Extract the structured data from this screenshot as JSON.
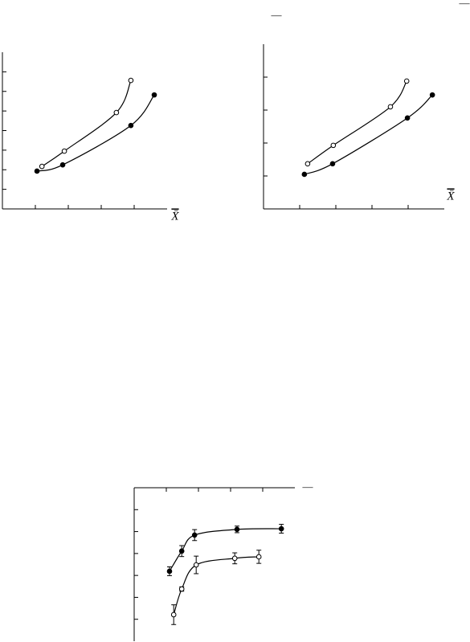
{
  "fragments": [
    "—",
    "—",
    "—"
  ],
  "chart_data": [
    {
      "type": "scatter",
      "x_label": "X̄",
      "xlim": [
        0,
        5
      ],
      "ylim": [
        0,
        8
      ],
      "xticks": [
        1,
        2,
        3,
        4
      ],
      "yticks": [
        1,
        2,
        3,
        4,
        5,
        6,
        7
      ],
      "series": [
        {
          "marker": "open",
          "color": "#000000",
          "x": [
            1.2,
            1.88,
            3.46,
            3.9
          ],
          "values": [
            2.17,
            2.95,
            4.92,
            6.56
          ]
        },
        {
          "marker": "filled",
          "color": "#000000",
          "x": [
            1.05,
            1.83,
            3.9,
            4.61
          ],
          "values": [
            1.93,
            2.25,
            4.26,
            5.82
          ]
        }
      ]
    },
    {
      "type": "scatter",
      "x_label": "X̄",
      "xlim": [
        0,
        5
      ],
      "ylim": [
        0,
        5
      ],
      "xticks": [
        1,
        2,
        3,
        4
      ],
      "yticks": [
        1,
        2,
        3,
        4
      ],
      "series": [
        {
          "marker": "open",
          "color": "#000000",
          "x": [
            1.22,
            1.93,
            3.51,
            3.96
          ],
          "values": [
            1.37,
            1.93,
            3.1,
            3.88
          ]
        },
        {
          "marker": "filled",
          "color": "#000000",
          "x": [
            1.13,
            1.91,
            3.98,
            4.67
          ],
          "values": [
            1.05,
            1.37,
            2.76,
            3.46
          ]
        }
      ]
    },
    {
      "type": "scatter",
      "y_inverted": true,
      "xlim": [
        0,
        5
      ],
      "ylim": [
        0,
        7
      ],
      "xticks": [
        1,
        2,
        3,
        4
      ],
      "yticks": [
        1,
        2,
        3,
        4,
        5,
        6
      ],
      "series": [
        {
          "marker": "filled",
          "color": "#000000",
          "x": [
            1.1,
            1.48,
            1.88,
            3.2,
            4.58
          ],
          "values": [
            3.81,
            2.89,
            2.16,
            1.9,
            1.87
          ],
          "errors": [
            0.2,
            0.25,
            0.25,
            0.15,
            0.2
          ]
        },
        {
          "marker": "open",
          "color": "#000000",
          "x": [
            1.23,
            1.48,
            1.93,
            3.13,
            3.88
          ],
          "values": [
            5.79,
            4.62,
            3.52,
            3.22,
            3.15
          ],
          "errors": [
            0.45,
            0.1,
            0.4,
            0.25,
            0.3
          ]
        }
      ]
    }
  ]
}
